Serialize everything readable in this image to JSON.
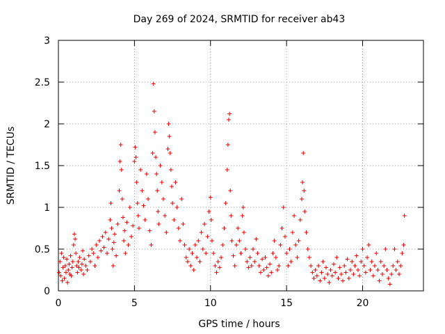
{
  "chart_data": {
    "type": "scatter",
    "title": "Day 269 of 2024, SRMTID for receiver ab43",
    "xlabel": "GPS time / hours",
    "ylabel": "SRMTID / TECUs",
    "xlim": [
      0,
      24
    ],
    "ylim": [
      0,
      3
    ],
    "xticks": [
      0,
      5,
      10,
      15,
      20
    ],
    "xtick_labels": [
      "0",
      "5",
      "10",
      "15",
      "20"
    ],
    "yticks": [
      0,
      0.5,
      1,
      1.5,
      2,
      2.5,
      3
    ],
    "ytick_labels": [
      "0",
      "0.5",
      "1",
      "1.5",
      "2",
      "2.5",
      "3"
    ],
    "grid": true,
    "marker": "+",
    "color": "#e00000",
    "series": [
      {
        "name": "SRMTID",
        "points": [
          [
            0.05,
            0.22
          ],
          [
            0.1,
            0.35
          ],
          [
            0.15,
            0.18
          ],
          [
            0.2,
            0.45
          ],
          [
            0.25,
            0.12
          ],
          [
            0.3,
            0.28
          ],
          [
            0.35,
            0.4
          ],
          [
            0.4,
            0.15
          ],
          [
            0.45,
            0.3
          ],
          [
            0.5,
            0.22
          ],
          [
            0.55,
            0.38
          ],
          [
            0.6,
            0.1
          ],
          [
            0.65,
            0.25
          ],
          [
            0.7,
            0.32
          ],
          [
            0.75,
            0.2
          ],
          [
            0.8,
            0.42
          ],
          [
            0.85,
            0.18
          ],
          [
            0.9,
            0.28
          ],
          [
            0.95,
            0.35
          ],
          [
            1.0,
            0.55
          ],
          [
            1.05,
            0.68
          ],
          [
            1.1,
            0.62
          ],
          [
            1.15,
            0.45
          ],
          [
            1.2,
            0.3
          ],
          [
            1.25,
            0.22
          ],
          [
            1.3,
            0.35
          ],
          [
            1.35,
            0.28
          ],
          [
            1.4,
            0.4
          ],
          [
            1.5,
            0.25
          ],
          [
            1.55,
            0.32
          ],
          [
            1.6,
            0.48
          ],
          [
            1.65,
            0.2
          ],
          [
            1.7,
            0.38
          ],
          [
            1.8,
            0.3
          ],
          [
            1.9,
            0.25
          ],
          [
            2.0,
            0.42
          ],
          [
            2.1,
            0.35
          ],
          [
            2.2,
            0.5
          ],
          [
            2.3,
            0.45
          ],
          [
            2.4,
            0.3
          ],
          [
            2.5,
            0.55
          ],
          [
            2.6,
            0.4
          ],
          [
            2.7,
            0.6
          ],
          [
            2.8,
            0.48
          ],
          [
            2.9,
            0.65
          ],
          [
            3.0,
            0.52
          ],
          [
            3.1,
            0.7
          ],
          [
            3.2,
            0.45
          ],
          [
            3.3,
            0.62
          ],
          [
            3.4,
            0.85
          ],
          [
            3.45,
            1.05
          ],
          [
            3.5,
            0.75
          ],
          [
            3.55,
            0.5
          ],
          [
            3.6,
            0.3
          ],
          [
            3.65,
            0.58
          ],
          [
            3.7,
            0.68
          ],
          [
            3.8,
            0.42
          ],
          [
            3.9,
            0.8
          ],
          [
            4.0,
            1.2
          ],
          [
            4.05,
            1.55
          ],
          [
            4.1,
            1.75
          ],
          [
            4.15,
            1.45
          ],
          [
            4.2,
            1.1
          ],
          [
            4.25,
            0.88
          ],
          [
            4.3,
            0.6
          ],
          [
            4.35,
            0.72
          ],
          [
            4.4,
            0.45
          ],
          [
            4.5,
            0.82
          ],
          [
            4.6,
            0.55
          ],
          [
            4.7,
            1.0
          ],
          [
            4.8,
            0.65
          ],
          [
            4.9,
            0.78
          ],
          [
            5.0,
            1.55
          ],
          [
            5.05,
            1.72
          ],
          [
            5.1,
            1.6
          ],
          [
            5.15,
            1.3
          ],
          [
            5.2,
            1.05
          ],
          [
            5.25,
            0.9
          ],
          [
            5.3,
            0.75
          ],
          [
            5.4,
            1.45
          ],
          [
            5.5,
            1.2
          ],
          [
            5.6,
            1.02
          ],
          [
            5.7,
            0.85
          ],
          [
            5.8,
            1.4
          ],
          [
            5.9,
            1.1
          ],
          [
            6.0,
            0.72
          ],
          [
            6.1,
            0.55
          ],
          [
            6.2,
            1.65
          ],
          [
            6.25,
            2.48
          ],
          [
            6.3,
            2.15
          ],
          [
            6.35,
            1.9
          ],
          [
            6.4,
            1.6
          ],
          [
            6.45,
            1.4
          ],
          [
            6.5,
            1.2
          ],
          [
            6.55,
            0.95
          ],
          [
            6.6,
            0.8
          ],
          [
            6.7,
            1.5
          ],
          [
            6.8,
            1.3
          ],
          [
            6.9,
            1.1
          ],
          [
            7.0,
            0.9
          ],
          [
            7.1,
            0.7
          ],
          [
            7.2,
            1.7
          ],
          [
            7.25,
            2.0
          ],
          [
            7.3,
            1.85
          ],
          [
            7.35,
            1.65
          ],
          [
            7.4,
            1.45
          ],
          [
            7.45,
            1.25
          ],
          [
            7.5,
            1.05
          ],
          [
            7.6,
            0.85
          ],
          [
            7.7,
            1.3
          ],
          [
            7.8,
            1.0
          ],
          [
            7.9,
            0.75
          ],
          [
            8.0,
            0.6
          ],
          [
            8.1,
            1.1
          ],
          [
            8.2,
            0.8
          ],
          [
            8.3,
            0.55
          ],
          [
            8.4,
            0.4
          ],
          [
            8.5,
            0.35
          ],
          [
            8.6,
            0.5
          ],
          [
            8.7,
            0.3
          ],
          [
            8.8,
            0.45
          ],
          [
            8.9,
            0.25
          ],
          [
            9.0,
            0.55
          ],
          [
            9.1,
            0.4
          ],
          [
            9.2,
            0.6
          ],
          [
            9.3,
            0.35
          ],
          [
            9.4,
            0.7
          ],
          [
            9.5,
            0.5
          ],
          [
            9.6,
            0.8
          ],
          [
            9.7,
            0.45
          ],
          [
            9.8,
            0.65
          ],
          [
            9.9,
            0.95
          ],
          [
            10.0,
            1.12
          ],
          [
            10.05,
            0.85
          ],
          [
            10.1,
            0.6
          ],
          [
            10.2,
            0.45
          ],
          [
            10.3,
            0.3
          ],
          [
            10.4,
            0.22
          ],
          [
            10.5,
            0.35
          ],
          [
            10.6,
            0.28
          ],
          [
            10.7,
            0.4
          ],
          [
            10.8,
            0.55
          ],
          [
            10.9,
            0.75
          ],
          [
            11.0,
            1.05
          ],
          [
            11.1,
            1.45
          ],
          [
            11.15,
            1.75
          ],
          [
            11.2,
            2.05
          ],
          [
            11.25,
            2.12
          ],
          [
            11.3,
            1.2
          ],
          [
            11.35,
            0.9
          ],
          [
            11.4,
            0.6
          ],
          [
            11.5,
            0.42
          ],
          [
            11.6,
            0.3
          ],
          [
            11.7,
            0.55
          ],
          [
            11.8,
            0.75
          ],
          [
            11.9,
            0.6
          ],
          [
            12.0,
            0.45
          ],
          [
            12.1,
            0.9
          ],
          [
            12.15,
            1.0
          ],
          [
            12.2,
            0.7
          ],
          [
            12.3,
            0.5
          ],
          [
            12.4,
            0.35
          ],
          [
            12.5,
            0.28
          ],
          [
            12.6,
            0.4
          ],
          [
            12.7,
            0.3
          ],
          [
            12.8,
            0.5
          ],
          [
            12.9,
            0.35
          ],
          [
            13.0,
            0.62
          ],
          [
            13.1,
            0.45
          ],
          [
            13.2,
            0.3
          ],
          [
            13.3,
            0.22
          ],
          [
            13.4,
            0.38
          ],
          [
            13.5,
            0.25
          ],
          [
            13.6,
            0.4
          ],
          [
            13.7,
            0.28
          ],
          [
            13.8,
            0.18
          ],
          [
            13.9,
            0.32
          ],
          [
            14.0,
            0.22
          ],
          [
            14.1,
            0.45
          ],
          [
            14.2,
            0.6
          ],
          [
            14.3,
            0.4
          ],
          [
            14.4,
            0.25
          ],
          [
            14.5,
            0.3
          ],
          [
            14.6,
            0.55
          ],
          [
            14.7,
            0.75
          ],
          [
            14.8,
            1.0
          ],
          [
            14.9,
            0.65
          ],
          [
            15.0,
            0.45
          ],
          [
            15.1,
            0.3
          ],
          [
            15.2,
            0.5
          ],
          [
            15.3,
            0.35
          ],
          [
            15.4,
            0.7
          ],
          [
            15.5,
            0.9
          ],
          [
            15.6,
            0.55
          ],
          [
            15.7,
            0.4
          ],
          [
            15.8,
            0.6
          ],
          [
            15.9,
            0.85
          ],
          [
            16.0,
            1.1
          ],
          [
            16.05,
            1.3
          ],
          [
            16.1,
            1.65
          ],
          [
            16.15,
            1.2
          ],
          [
            16.2,
            0.95
          ],
          [
            16.3,
            0.7
          ],
          [
            16.4,
            0.5
          ],
          [
            16.5,
            0.4
          ],
          [
            16.6,
            0.3
          ],
          [
            16.7,
            0.22
          ],
          [
            16.8,
            0.15
          ],
          [
            16.9,
            0.25
          ],
          [
            17.0,
            0.18
          ],
          [
            17.1,
            0.3
          ],
          [
            17.2,
            0.12
          ],
          [
            17.3,
            0.22
          ],
          [
            17.4,
            0.35
          ],
          [
            17.5,
            0.15
          ],
          [
            17.6,
            0.28
          ],
          [
            17.7,
            0.2
          ],
          [
            17.8,
            0.1
          ],
          [
            17.9,
            0.25
          ],
          [
            18.0,
            0.18
          ],
          [
            18.1,
            0.32
          ],
          [
            18.2,
            0.22
          ],
          [
            18.3,
            0.4
          ],
          [
            18.4,
            0.15
          ],
          [
            18.5,
            0.28
          ],
          [
            18.6,
            0.2
          ],
          [
            18.7,
            0.12
          ],
          [
            18.8,
            0.3
          ],
          [
            18.9,
            0.22
          ],
          [
            19.0,
            0.38
          ],
          [
            19.1,
            0.15
          ],
          [
            19.2,
            0.25
          ],
          [
            19.3,
            0.35
          ],
          [
            19.4,
            0.2
          ],
          [
            19.5,
            0.3
          ],
          [
            19.6,
            0.42
          ],
          [
            19.7,
            0.25
          ],
          [
            19.8,
            0.18
          ],
          [
            19.9,
            0.35
          ],
          [
            20.0,
            0.5
          ],
          [
            20.1,
            0.3
          ],
          [
            20.2,
            0.22
          ],
          [
            20.3,
            0.4
          ],
          [
            20.4,
            0.55
          ],
          [
            20.5,
            0.25
          ],
          [
            20.6,
            0.35
          ],
          [
            20.7,
            0.18
          ],
          [
            20.8,
            0.3
          ],
          [
            20.9,
            0.45
          ],
          [
            21.0,
            0.25
          ],
          [
            21.1,
            0.12
          ],
          [
            21.2,
            0.35
          ],
          [
            21.3,
            0.2
          ],
          [
            21.4,
            0.3
          ],
          [
            21.5,
            0.5
          ],
          [
            21.6,
            0.25
          ],
          [
            21.7,
            0.15
          ],
          [
            21.8,
            0.08
          ],
          [
            21.9,
            0.2
          ],
          [
            22.0,
            0.3
          ],
          [
            22.1,
            0.5
          ],
          [
            22.2,
            0.25
          ],
          [
            22.3,
            0.35
          ],
          [
            22.4,
            0.2
          ],
          [
            22.5,
            0.3
          ],
          [
            22.6,
            0.45
          ],
          [
            22.7,
            0.55
          ],
          [
            22.75,
            0.9
          ]
        ]
      }
    ]
  }
}
